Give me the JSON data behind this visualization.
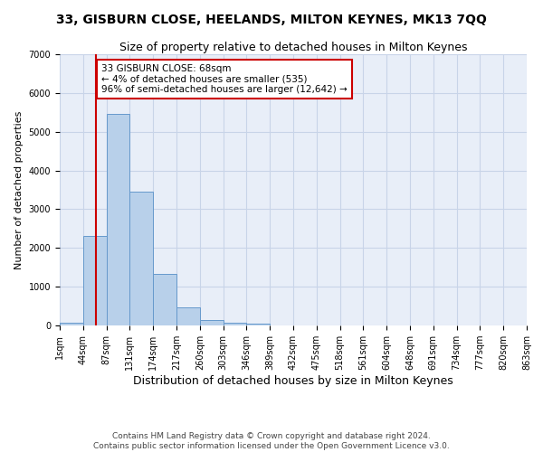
{
  "title": "33, GISBURN CLOSE, HEELANDS, MILTON KEYNES, MK13 7QQ",
  "subtitle": "Size of property relative to detached houses in Milton Keynes",
  "xlabel": "Distribution of detached houses by size in Milton Keynes",
  "ylabel": "Number of detached properties",
  "bar_color": "#b8d0ea",
  "bar_edge_color": "#6699cc",
  "bar_values": [
    75,
    2300,
    5450,
    3450,
    1320,
    460,
    150,
    80,
    45,
    0,
    0,
    0,
    0,
    0,
    0,
    0,
    0,
    0,
    0,
    0
  ],
  "x_labels": [
    "1sqm",
    "44sqm",
    "87sqm",
    "131sqm",
    "174sqm",
    "217sqm",
    "260sqm",
    "303sqm",
    "346sqm",
    "389sqm",
    "432sqm",
    "475sqm",
    "518sqm",
    "561sqm",
    "604sqm",
    "648sqm",
    "691sqm",
    "734sqm",
    "777sqm",
    "820sqm",
    "863sqm"
  ],
  "ylim": [
    0,
    7000
  ],
  "yticks": [
    0,
    1000,
    2000,
    3000,
    4000,
    5000,
    6000,
    7000
  ],
  "vline_x": 1.55,
  "annotation_text": "33 GISBURN CLOSE: 68sqm\n← 4% of detached houses are smaller (535)\n96% of semi-detached houses are larger (12,642) →",
  "annotation_box_color": "#ffffff",
  "annotation_box_edge_color": "#cc0000",
  "vline_color": "#cc0000",
  "grid_color": "#c8d4e8",
  "background_color": "#e8eef8",
  "footer_text": "Contains HM Land Registry data © Crown copyright and database right 2024.\nContains public sector information licensed under the Open Government Licence v3.0.",
  "title_fontsize": 10,
  "subtitle_fontsize": 9,
  "xlabel_fontsize": 9,
  "ylabel_fontsize": 8,
  "tick_fontsize": 7,
  "annotation_fontsize": 7.5,
  "footer_fontsize": 6.5
}
